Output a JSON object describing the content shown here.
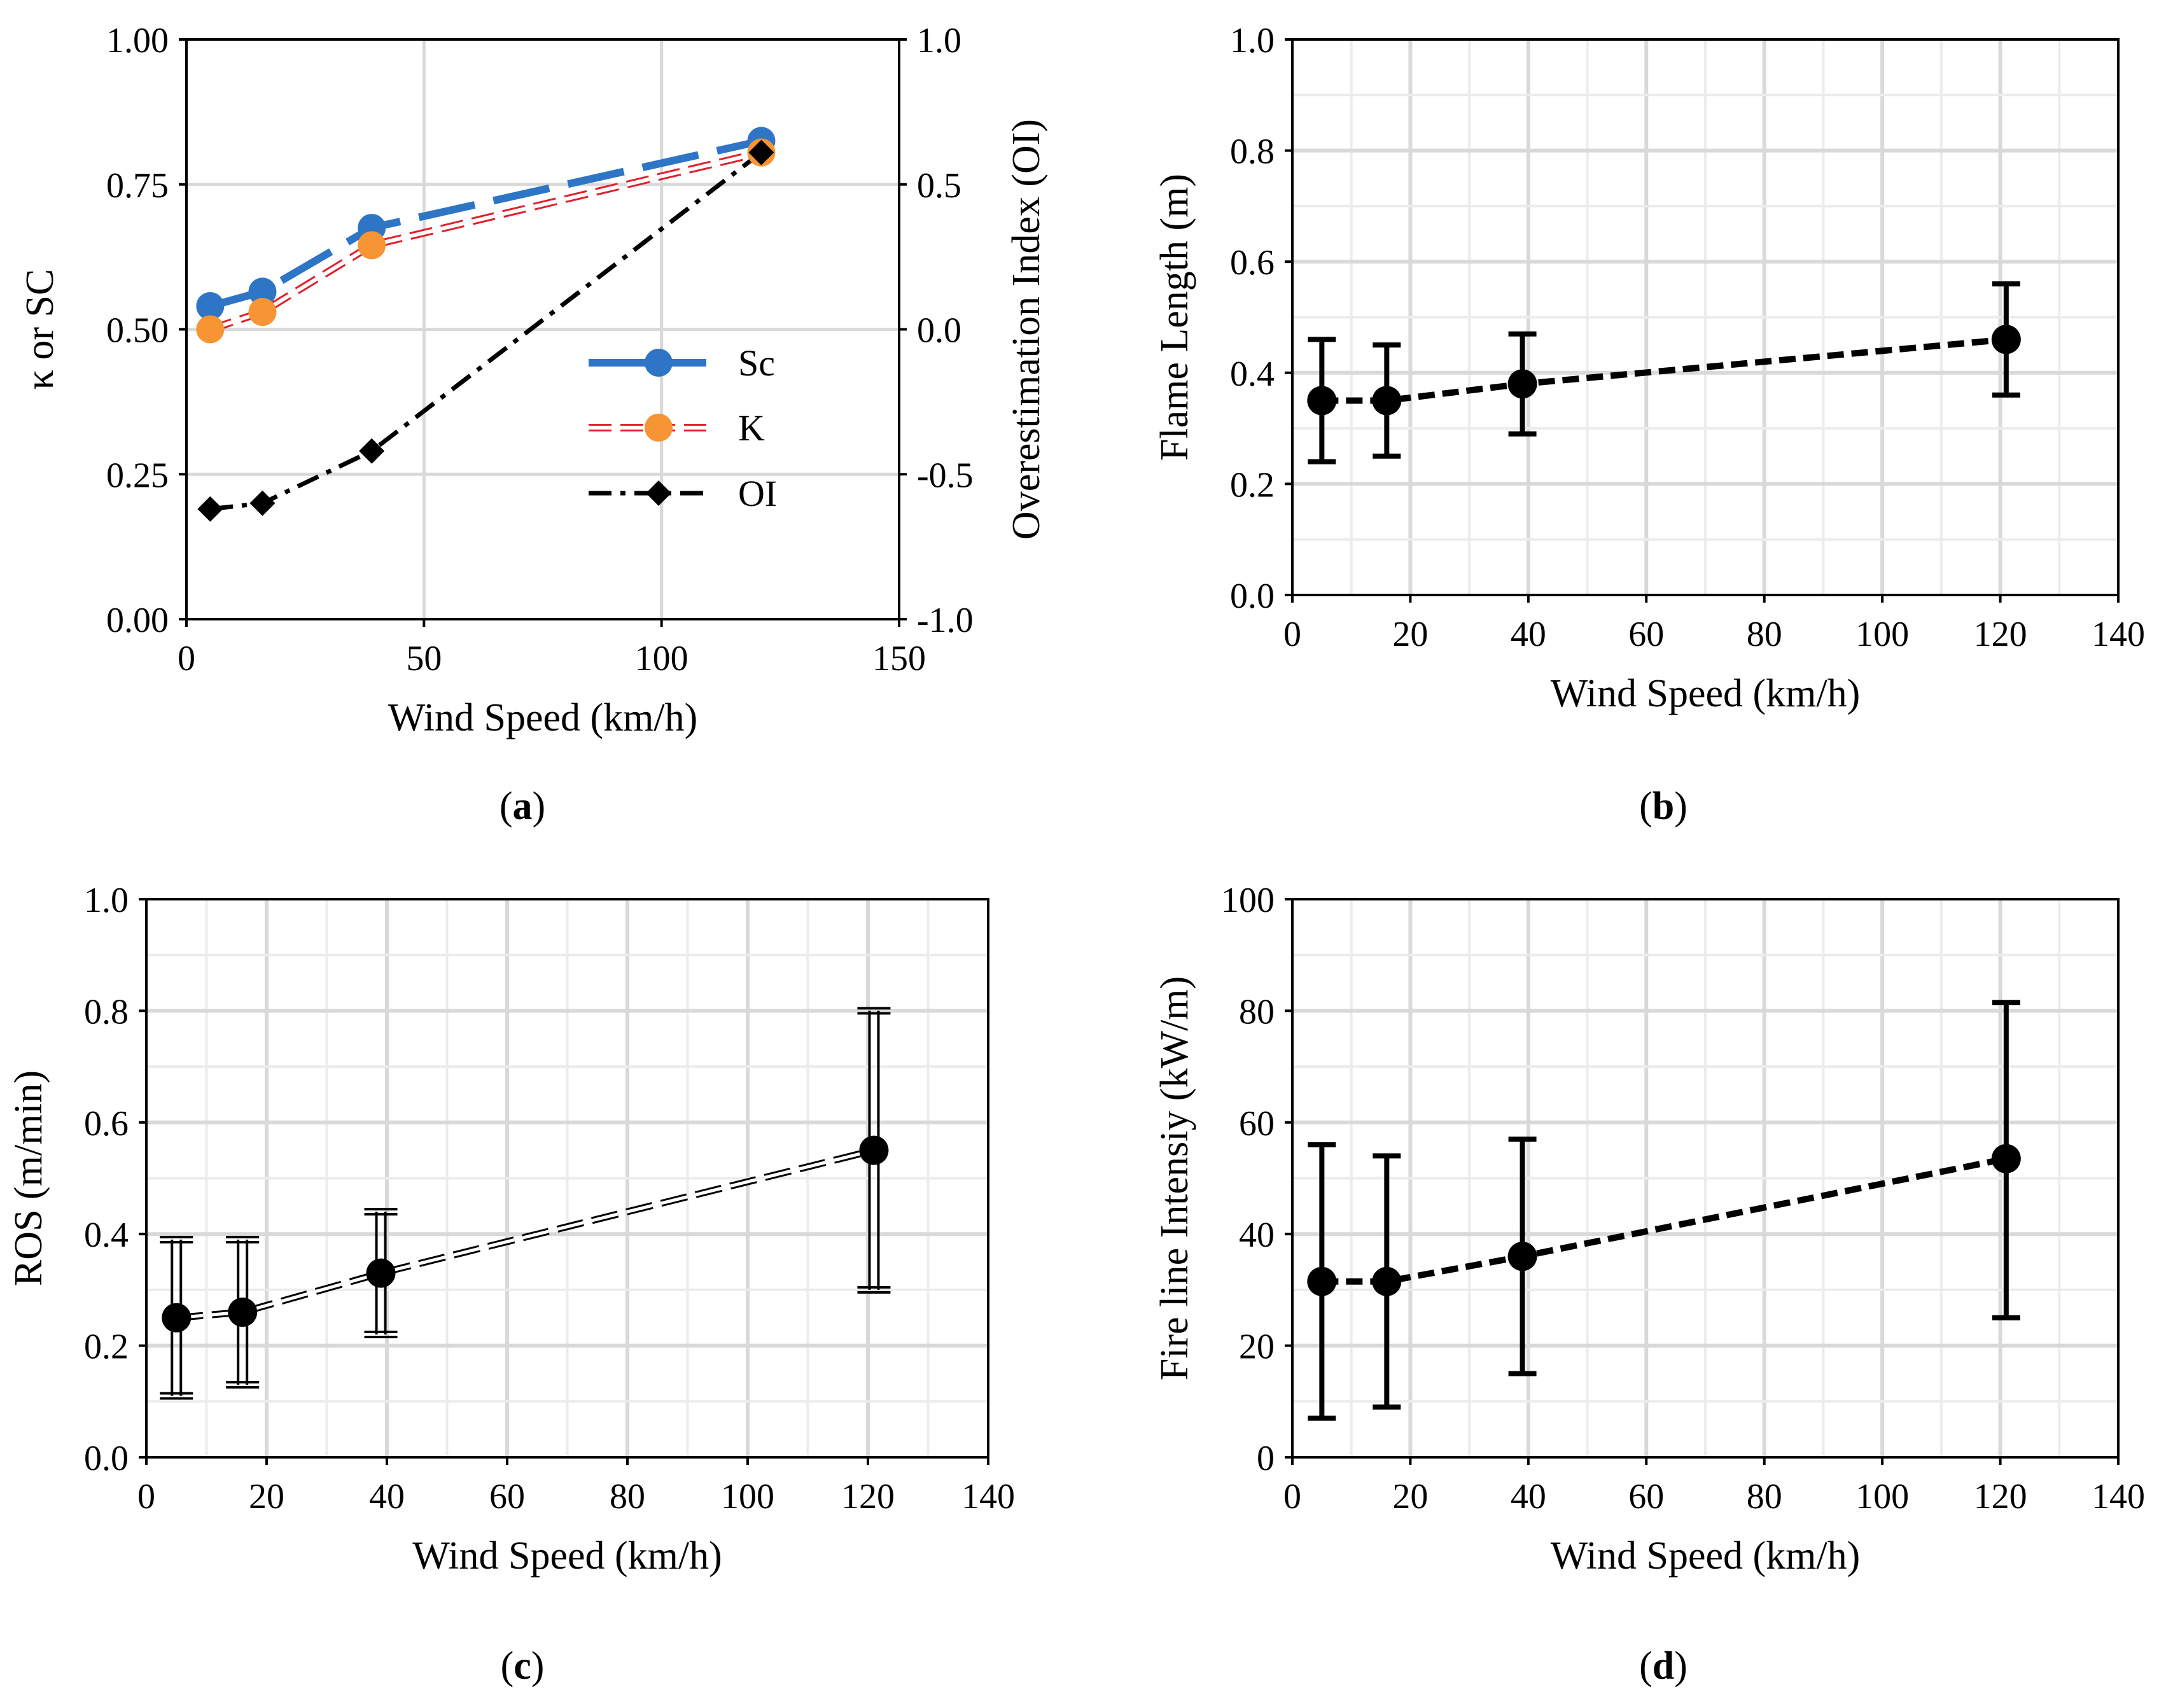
{
  "chart_data": [
    {
      "id": "a",
      "type": "line",
      "caption_letter": "a",
      "xlabel": "Wind Speed (km/h)",
      "ylabel": "κ or SC",
      "y2label": "Overestimation Index  (OI)",
      "xlim": [
        0,
        150
      ],
      "ylim": [
        0,
        1
      ],
      "y2lim": [
        -1,
        1
      ],
      "xticks": [
        0,
        50,
        100,
        150
      ],
      "yticks": [
        0,
        0.25,
        0.5,
        0.75,
        1
      ],
      "ytick_labels": [
        "0.00",
        "0.25",
        "0.50",
        "0.75",
        "1.00"
      ],
      "y2ticks": [
        -1,
        -0.5,
        0,
        0.5,
        1
      ],
      "y2tick_labels": [
        "-1.0",
        "-0.5",
        "0.0",
        "0.5",
        "1.0"
      ],
      "x": [
        5,
        16,
        39,
        121
      ],
      "series": [
        {
          "name": "Sc",
          "axis": "left",
          "values": [
            0.54,
            0.565,
            0.675,
            0.825
          ],
          "color": "#2e75c6",
          "style": "dash-solid",
          "marker": "circle"
        },
        {
          "name": "K",
          "axis": "left",
          "values": [
            0.5,
            0.53,
            0.645,
            0.805
          ],
          "color": "#e0202a",
          "marker_color": "#f79433",
          "style": "outline-dash",
          "marker": "circle"
        },
        {
          "name": "OI",
          "axis": "right",
          "values": [
            -0.62,
            -0.6,
            -0.42,
            0.61
          ],
          "color": "#000000",
          "style": "dash-dot",
          "marker": "diamond"
        }
      ],
      "legend_location": "center-right"
    },
    {
      "id": "b",
      "type": "line",
      "caption_letter": "b",
      "xlabel": "Wind Speed (km/h)",
      "ylabel": "Flame Length (m)",
      "xlim": [
        0,
        140
      ],
      "ylim": [
        0,
        1
      ],
      "xticks": [
        0,
        20,
        40,
        60,
        80,
        100,
        120,
        140
      ],
      "yticks": [
        0,
        0.2,
        0.4,
        0.6,
        0.8,
        1
      ],
      "ytick_labels": [
        "0.0",
        "0.2",
        "0.4",
        "0.6",
        "0.8",
        "1.0"
      ],
      "x": [
        5,
        16,
        39,
        121
      ],
      "values": [
        0.35,
        0.35,
        0.38,
        0.46
      ],
      "err_low": [
        0.24,
        0.25,
        0.29,
        0.36
      ],
      "err_high": [
        0.46,
        0.45,
        0.47,
        0.56
      ],
      "style": "dashed-black"
    },
    {
      "id": "c",
      "type": "line",
      "caption_letter": "c",
      "xlabel": "Wind Speed (km/h)",
      "ylabel": "ROS (m/min)",
      "xlim": [
        0,
        140
      ],
      "ylim": [
        0,
        1
      ],
      "xticks": [
        0,
        20,
        40,
        60,
        80,
        100,
        120,
        140
      ],
      "yticks": [
        0,
        0.2,
        0.4,
        0.6,
        0.8,
        1
      ],
      "ytick_labels": [
        "0.0",
        "0.2",
        "0.4",
        "0.6",
        "0.8",
        "1.0"
      ],
      "x": [
        5,
        16,
        39,
        121
      ],
      "values": [
        0.25,
        0.26,
        0.33,
        0.55
      ],
      "err_low": [
        0.11,
        0.13,
        0.22,
        0.3
      ],
      "err_high": [
        0.39,
        0.39,
        0.44,
        0.8
      ],
      "style": "outline-dash"
    },
    {
      "id": "d",
      "type": "line",
      "caption_letter": "d",
      "xlabel": "Wind Speed (km/h)",
      "ylabel": "Fire line Intensiy (kW/m)",
      "xlim": [
        0,
        140
      ],
      "ylim": [
        0,
        100
      ],
      "xticks": [
        0,
        20,
        40,
        60,
        80,
        100,
        120,
        140
      ],
      "yticks": [
        0,
        20,
        40,
        60,
        80,
        100
      ],
      "ytick_labels": [
        "0",
        "20",
        "40",
        "60",
        "80",
        "100"
      ],
      "x": [
        5,
        16,
        39,
        121
      ],
      "values": [
        31.5,
        31.5,
        36,
        53.5
      ],
      "err_low": [
        7,
        9,
        15,
        25
      ],
      "err_high": [
        56,
        54,
        57,
        81.5
      ],
      "style": "dashed-black"
    }
  ]
}
